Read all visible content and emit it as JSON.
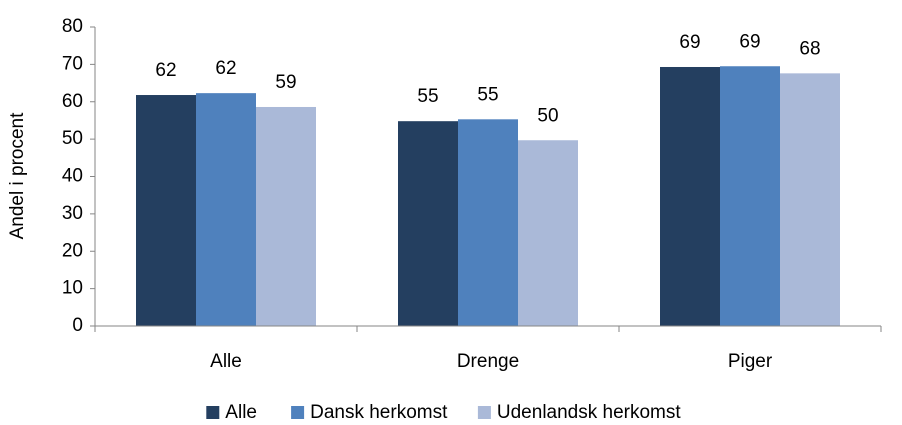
{
  "chart_data": {
    "type": "bar",
    "y_label": "Andel i procent",
    "categories": [
      "Alle",
      "Drenge",
      "Piger"
    ],
    "series": [
      {
        "name": "Alle",
        "color": "#243f60",
        "values": [
          61.8,
          54.8,
          69.3
        ],
        "value_labels": [
          "62",
          "55",
          "69"
        ]
      },
      {
        "name": "Dansk herkomst",
        "color": "#4f81bd",
        "values": [
          62.3,
          55.3,
          69.5
        ],
        "value_labels": [
          "62",
          "55",
          "69"
        ]
      },
      {
        "name": "Udenlandsk herkomst",
        "color": "#aab9d8",
        "values": [
          58.6,
          49.7,
          67.6
        ],
        "value_labels": [
          "59",
          "50",
          "68"
        ]
      }
    ],
    "ylim": [
      0,
      80
    ],
    "yticks": [
      0,
      10,
      20,
      30,
      40,
      50,
      60,
      70,
      80
    ],
    "legend": "bottom"
  }
}
